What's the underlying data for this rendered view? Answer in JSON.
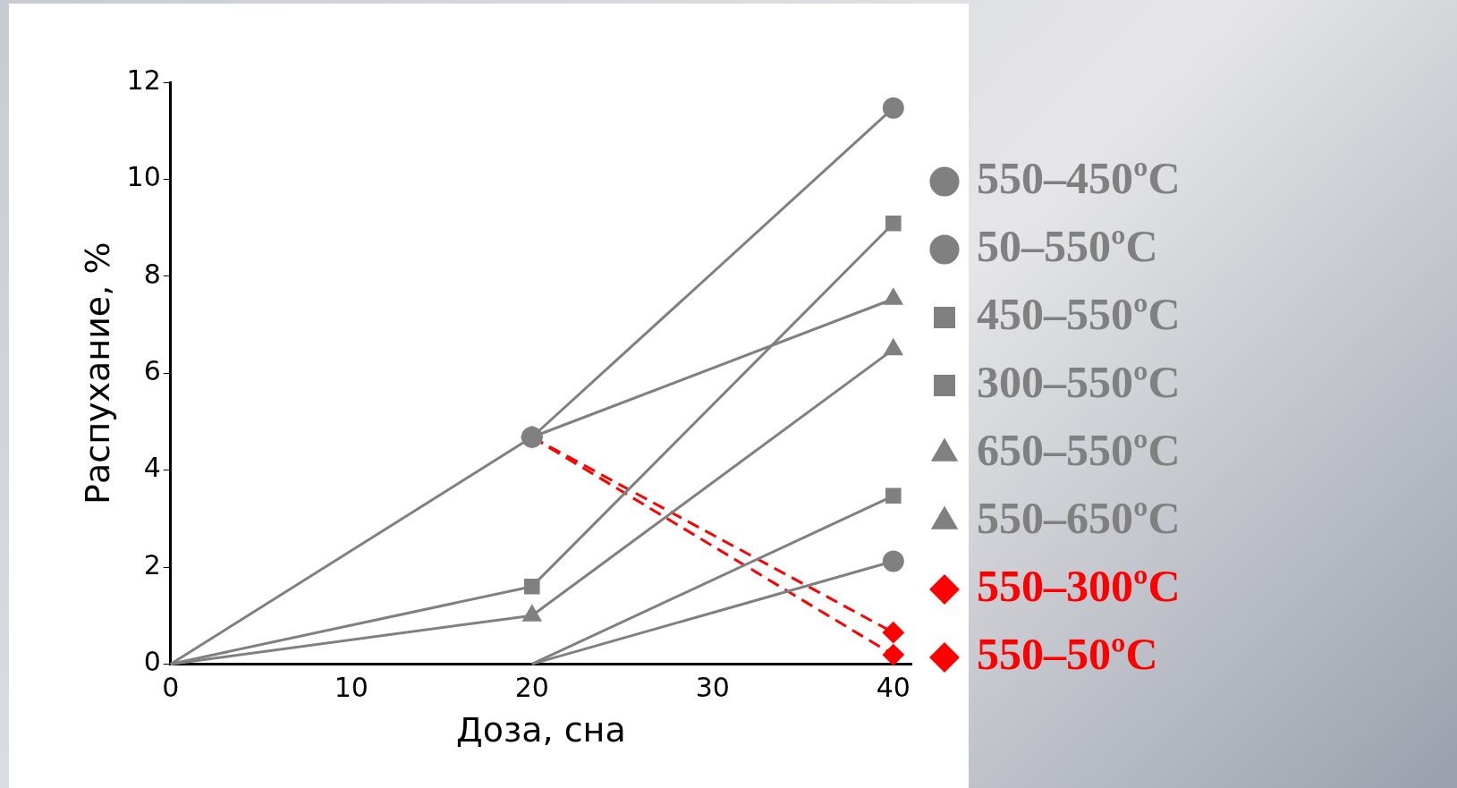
{
  "chart_data": {
    "type": "line",
    "xlabel": "Доза, сна",
    "ylabel": "Распухание, %",
    "xlim": [
      0,
      41
    ],
    "xticks": [
      0,
      10,
      20,
      30,
      40
    ],
    "ylim": [
      0,
      12
    ],
    "yticks": [
      0,
      2,
      4,
      6,
      8,
      10,
      12
    ],
    "grid": false,
    "legend": "right",
    "line_style": "solid",
    "series": [
      {
        "name": "550–450ºC",
        "color": "#808080",
        "marker": "circle",
        "x": [
          0,
          20,
          40
        ],
        "values": [
          0,
          4.68,
          11.47
        ]
      },
      {
        "name": "50–550ºC",
        "color": "#808080",
        "marker": "circle",
        "x": [
          20,
          40
        ],
        "values": [
          0,
          2.12
        ]
      },
      {
        "name": "450–550ºC",
        "color": "#808080",
        "marker": "square",
        "x": [
          0,
          20,
          40
        ],
        "values": [
          0,
          1.6,
          9.09
        ]
      },
      {
        "name": "300–550ºC",
        "color": "#808080",
        "marker": "square",
        "x": [
          20,
          40
        ],
        "values": [
          0,
          3.47
        ]
      },
      {
        "name": "650–550ºC",
        "color": "#808080",
        "marker": "triangle",
        "x": [
          0,
          20,
          40
        ],
        "values": [
          0,
          1.0,
          6.49
        ]
      },
      {
        "name": "550–650ºC",
        "color": "#808080",
        "marker": "triangle",
        "x": [
          20,
          40
        ],
        "values": [
          4.68,
          7.53
        ]
      },
      {
        "name": "550–300ºC",
        "color": "#ff0000",
        "marker": "diamond",
        "line_style": "dashed",
        "x": [
          20,
          40
        ],
        "values": [
          4.68,
          0.65
        ]
      },
      {
        "name": "550–50ºC",
        "color": "#ff0000",
        "marker": "diamond",
        "line_style": "dashed",
        "x": [
          20,
          40
        ],
        "values": [
          4.68,
          0.19
        ]
      }
    ]
  }
}
